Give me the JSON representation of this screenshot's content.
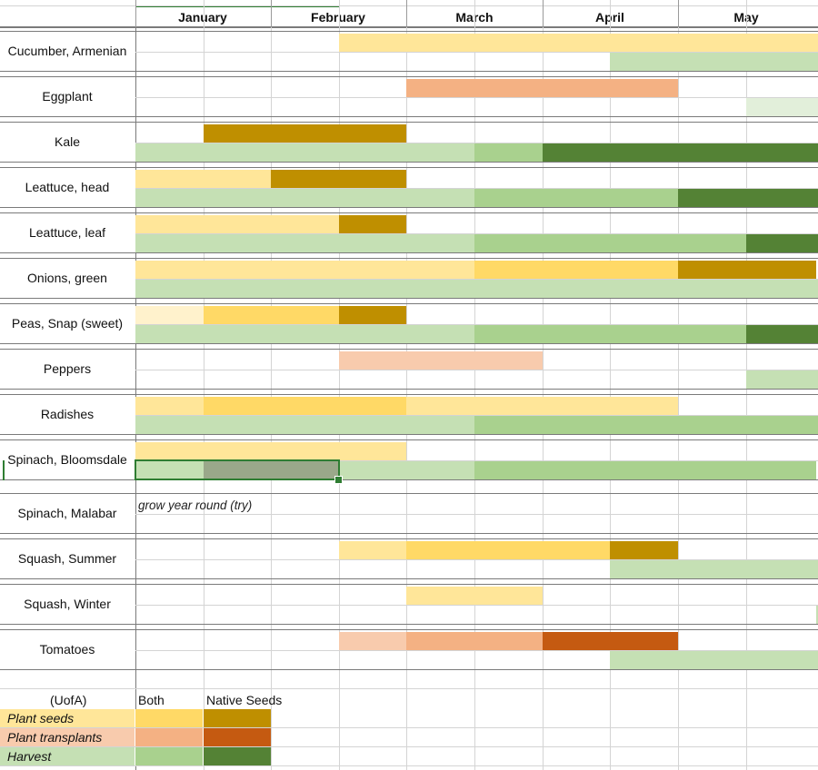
{
  "sheet": {
    "months": [
      "January",
      "February",
      "March",
      "April",
      "May"
    ],
    "rows": [
      {
        "label": "Cucumber, Armenian"
      },
      {
        "label": "Eggplant"
      },
      {
        "label": "Kale"
      },
      {
        "label": "Leattuce, head"
      },
      {
        "label": "Leattuce, leaf"
      },
      {
        "label": "Onions, green"
      },
      {
        "label": "Peas, Snap (sweet)"
      },
      {
        "label": "Peppers"
      },
      {
        "label": "Radishes"
      },
      {
        "label": "Spinach, Bloomsdale"
      },
      {
        "label": "Spinach, Malabar",
        "note": "grow year round (try)"
      },
      {
        "label": "Squash, Summer"
      },
      {
        "label": "Squash, Winter"
      },
      {
        "label": "Tomatoes"
      }
    ]
  },
  "colors": {
    "seed_uofa": "#ffe699",
    "seed_both": "#ffd966",
    "seed_native": "#bf8f00",
    "trans_uofa": "#f8cbad",
    "trans_both": "#f4b183",
    "trans_native": "#c55a11",
    "harv_uofa": "#c5e0b4",
    "harv_both": "#a9d18e",
    "harv_native": "#548235",
    "harv_faint": "#e2efda",
    "selected_fill": "#9aa88a"
  },
  "legend": {
    "source_header": "(UofA)",
    "both_header": "Both",
    "native_header": "Native Seeds",
    "items": [
      {
        "label": "Plant seeds",
        "color_key": "seed"
      },
      {
        "label": "Plant transplants",
        "color_key": "trans"
      },
      {
        "label": "Harvest",
        "color_key": "harv"
      }
    ]
  }
}
